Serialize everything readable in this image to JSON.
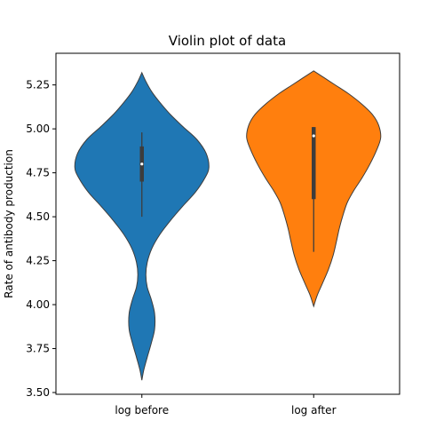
{
  "chart_data": {
    "type": "violin",
    "title": "Violin plot of data",
    "xlabel": "",
    "ylabel": "Rate of antibody production",
    "ylim": [
      3.49,
      5.43
    ],
    "yticks": [
      3.5,
      3.75,
      4.0,
      4.25,
      4.5,
      4.75,
      5.0,
      5.25
    ],
    "ytick_labels": [
      "3.50",
      "3.75",
      "4.00",
      "4.25",
      "4.50",
      "4.75",
      "5.00",
      "5.25"
    ],
    "categories": [
      "log before",
      "log after"
    ],
    "grid": false,
    "series": [
      {
        "color": "#1f77b4",
        "min": 4.5,
        "q1": 4.7,
        "median": 4.8,
        "q3": 4.9,
        "max": 4.98,
        "kde_min": 3.57,
        "kde_max": 5.32,
        "density": [
          [
            3.57,
            0.0
          ],
          [
            3.63,
            0.03
          ],
          [
            3.7,
            0.08
          ],
          [
            3.78,
            0.14
          ],
          [
            3.86,
            0.19
          ],
          [
            3.95,
            0.19
          ],
          [
            4.03,
            0.14
          ],
          [
            4.1,
            0.08
          ],
          [
            4.17,
            0.06
          ],
          [
            4.24,
            0.08
          ],
          [
            4.32,
            0.15
          ],
          [
            4.4,
            0.27
          ],
          [
            4.48,
            0.43
          ],
          [
            4.56,
            0.61
          ],
          [
            4.64,
            0.8
          ],
          [
            4.72,
            0.94
          ],
          [
            4.78,
            1.0
          ],
          [
            4.86,
            0.96
          ],
          [
            4.94,
            0.82
          ],
          [
            5.01,
            0.62
          ],
          [
            5.08,
            0.43
          ],
          [
            5.15,
            0.27
          ],
          [
            5.21,
            0.15
          ],
          [
            5.27,
            0.06
          ],
          [
            5.32,
            0.0
          ]
        ]
      },
      {
        "color": "#ff7f0e",
        "min": 4.3,
        "q1": 4.6,
        "median": 4.96,
        "q3": 5.01,
        "max": 5.01,
        "kde_min": 3.99,
        "kde_max": 5.33,
        "density": [
          [
            3.99,
            0.0
          ],
          [
            4.05,
            0.05
          ],
          [
            4.12,
            0.13
          ],
          [
            4.2,
            0.22
          ],
          [
            4.28,
            0.29
          ],
          [
            4.36,
            0.34
          ],
          [
            4.43,
            0.38
          ],
          [
            4.5,
            0.43
          ],
          [
            4.58,
            0.5
          ],
          [
            4.65,
            0.6
          ],
          [
            4.72,
            0.72
          ],
          [
            4.8,
            0.84
          ],
          [
            4.88,
            0.94
          ],
          [
            4.95,
            1.0
          ],
          [
            5.02,
            0.97
          ],
          [
            5.08,
            0.88
          ],
          [
            5.14,
            0.72
          ],
          [
            5.2,
            0.52
          ],
          [
            5.25,
            0.32
          ],
          [
            5.29,
            0.16
          ],
          [
            5.33,
            0.0
          ]
        ]
      }
    ]
  }
}
